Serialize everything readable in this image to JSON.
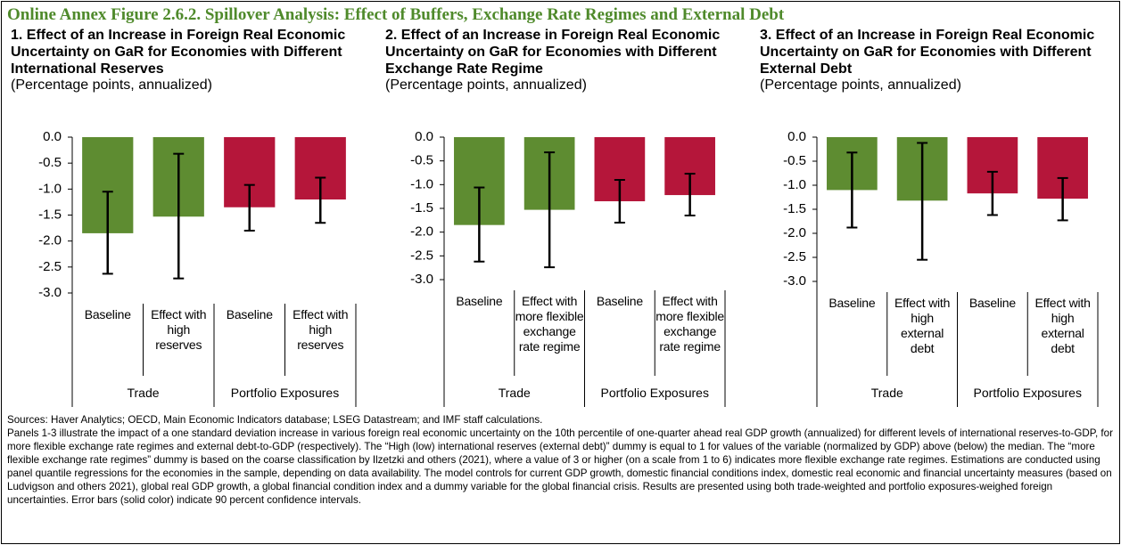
{
  "figure_title": "Online Annex Figure 2.6.2. Spillover Analysis: Effect of Buffers, Exchange Rate Regimes and External Debt",
  "chart_data": [
    {
      "type": "bar",
      "title": "1.    Effect of an Increase in Foreign Real Economic Uncertainty on GaR for Economies with Different International Reserves",
      "subtitle": "(Percentage points, annualized)",
      "categories": [
        "Baseline",
        "Effect with high reserves",
        "Baseline",
        "Effect with high reserves"
      ],
      "groups": [
        "Trade",
        "Portfolio Exposures"
      ],
      "values": [
        -1.85,
        -1.53,
        -1.35,
        -1.2
      ],
      "error_low": [
        -2.63,
        -2.72,
        -1.8,
        -1.65
      ],
      "error_high": [
        -1.05,
        -0.32,
        -0.92,
        -0.78
      ],
      "colors": [
        "#5e8c31",
        "#5e8c31",
        "#b5163a",
        "#b5163a"
      ],
      "ylim": [
        -3,
        0
      ],
      "yticks": [
        {
          "value": 0,
          "label": "0.0"
        },
        {
          "value": -0.5,
          "label": "-0.5"
        },
        {
          "value": -1,
          "label": "-1.0"
        },
        {
          "value": -1.5,
          "label": "-1.5"
        },
        {
          "value": -2,
          "label": "-2.0"
        },
        {
          "value": -2.5,
          "label": "-2.5"
        },
        {
          "value": -3,
          "label": "-3.0"
        }
      ]
    },
    {
      "type": "bar",
      "title": "2.    Effect of an Increase in Foreign Real Economic Uncertainty on GaR for Economies with Different Exchange Rate Regime",
      "subtitle": "(Percentage points, annualized)",
      "categories": [
        "Baseline",
        "Effect with more flexible exchange rate regime",
        "Baseline",
        "Effect with more flexible exchange rate regime"
      ],
      "groups": [
        "Trade",
        "Portfolio Exposures"
      ],
      "values": [
        -1.85,
        -1.53,
        -1.35,
        -1.22
      ],
      "error_low": [
        -2.62,
        -2.74,
        -1.8,
        -1.65
      ],
      "error_high": [
        -1.06,
        -0.32,
        -0.9,
        -0.77
      ],
      "colors": [
        "#5e8c31",
        "#5e8c31",
        "#b5163a",
        "#b5163a"
      ],
      "ylim": [
        -3,
        0
      ],
      "yticks": [
        {
          "value": 0,
          "label": "0.0"
        },
        {
          "value": -0.5,
          "label": "-0.5"
        },
        {
          "value": -1,
          "label": "-1.0"
        },
        {
          "value": -1.5,
          "label": "-1.5"
        },
        {
          "value": -2,
          "label": "-2.0"
        },
        {
          "value": -2.5,
          "label": "-2.5"
        },
        {
          "value": -3,
          "label": "-3.0"
        }
      ]
    },
    {
      "type": "bar",
      "title": "3.    Effect of an Increase in Foreign Real Economic Uncertainty on GaR for Economies with Different External Debt",
      "subtitle": "(Percentage points, annualized)",
      "categories": [
        "Baseline",
        "Effect with high external debt",
        "Baseline",
        "Effect with high external debt"
      ],
      "groups": [
        "Trade",
        "Portfolio Exposures"
      ],
      "values": [
        -1.1,
        -1.32,
        -1.17,
        -1.28
      ],
      "error_low": [
        -1.88,
        -2.55,
        -1.62,
        -1.73
      ],
      "error_high": [
        -0.32,
        -0.12,
        -0.72,
        -0.85
      ],
      "colors": [
        "#5e8c31",
        "#5e8c31",
        "#b5163a",
        "#b5163a"
      ],
      "ylim": [
        -3,
        0
      ],
      "yticks": [
        {
          "value": 0,
          "label": "0.0"
        },
        {
          "value": -0.5,
          "label": "-0.5"
        },
        {
          "value": -1,
          "label": "-1.0"
        },
        {
          "value": -1.5,
          "label": "-1.5"
        },
        {
          "value": -2,
          "label": "-2.0"
        },
        {
          "value": -2.5,
          "label": "-2.5"
        },
        {
          "value": -3,
          "label": "-3.0"
        }
      ]
    }
  ],
  "sources": "Sources: Haver Analytics; OECD, Main Economic Indicators database; LSEG Datastream; and IMF staff calculations.",
  "notes": "Panels 1-3 illustrate the impact of a one standard deviation increase in various foreign real economic uncertainty on the 10th percentile of one-quarter ahead real GDP growth (annualized) for different levels of international reserves-to-GDP, for more flexible exchange rate regimes and external debt-to-GDP (respectively). The “High (low) international reserves (external debt)” dummy is equal to 1 for values of the variable (normalized by GDP) above (below) the median. The “more flexible exchange rate regimes” dummy is based on the coarse classification by Ilzetzki and others (2021), where a value of 3 or higher (on a scale from 1 to 6) indicates more flexible exchange rate regimes. Estimations are conducted using panel quantile regressions for the economies in the sample, depending on data availability. The model controls for current GDP growth, domestic financial conditions index, domestic real economic and financial uncertainty measures (based on Ludvigson and others 2021), global real GDP growth, a global financial condition index and a dummy variable for the global financial crisis.  Results are presented using both trade-weighted and portfolio exposures-weighed foreign uncertainties. Error bars (solid color) indicate 90 percent confidence intervals."
}
